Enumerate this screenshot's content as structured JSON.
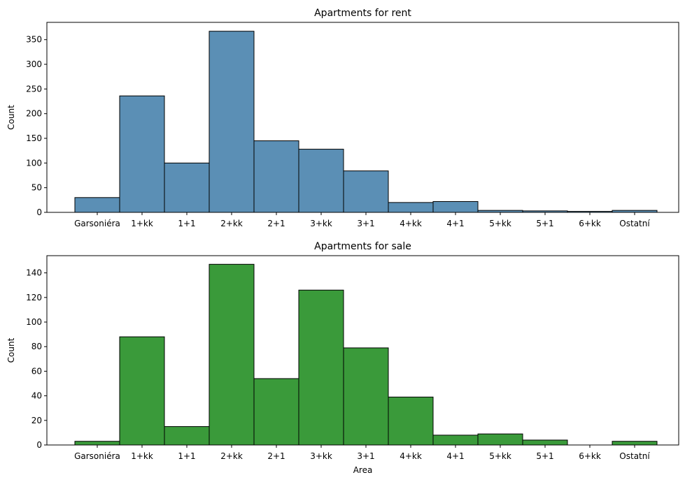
{
  "chart_data": [
    {
      "type": "bar",
      "title": "Apartments for rent",
      "xlabel": "",
      "ylabel": "Count",
      "categories": [
        "Garsoniéra",
        "1+kk",
        "1+1",
        "2+kk",
        "2+1",
        "3+kk",
        "3+1",
        "4+kk",
        "4+1",
        "5+kk",
        "5+1",
        "6+kk",
        "Ostatní"
      ],
      "values": [
        30,
        236,
        100,
        367,
        145,
        128,
        84,
        20,
        22,
        4,
        3,
        2,
        4
      ],
      "ylim": [
        0,
        385
      ],
      "yticks": [
        0,
        50,
        100,
        150,
        200,
        250,
        300,
        350
      ],
      "color": "#5b8fb5",
      "grid": false
    },
    {
      "type": "bar",
      "title": "Apartments for sale",
      "xlabel": "Area",
      "ylabel": "Count",
      "categories": [
        "Garsoniéra",
        "1+kk",
        "1+1",
        "2+kk",
        "2+1",
        "3+kk",
        "3+1",
        "4+kk",
        "4+1",
        "5+kk",
        "5+1",
        "6+kk",
        "Ostatní"
      ],
      "values": [
        3,
        88,
        15,
        147,
        54,
        126,
        79,
        39,
        8,
        9,
        4,
        0,
        3
      ],
      "ylim": [
        0,
        154
      ],
      "yticks": [
        0,
        20,
        40,
        60,
        80,
        100,
        120,
        140
      ],
      "color": "#3a9a3a",
      "grid": false
    }
  ]
}
